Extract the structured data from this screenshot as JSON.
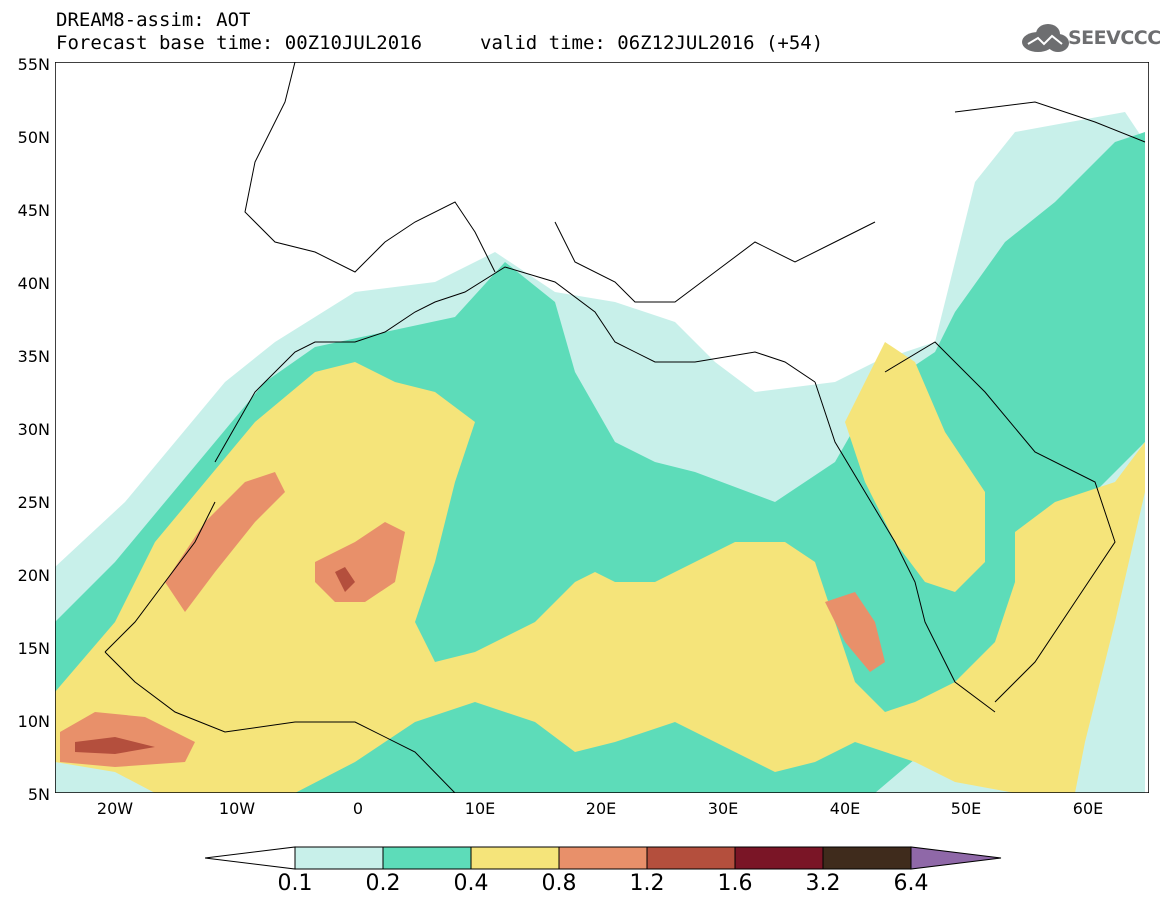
{
  "header": {
    "model_line": "DREAM8-assim: AOT",
    "base_time": "Forecast base time: 00Z10JUL2016",
    "valid_time": "valid time: 06Z12JUL2016 (+54)"
  },
  "logo": {
    "text": "SEEVCCC",
    "icon": "cloud-icon"
  },
  "map": {
    "latitude_labels": [
      "55N",
      "50N",
      "45N",
      "40N",
      "35N",
      "30N",
      "25N",
      "20N",
      "15N",
      "10N",
      "5N"
    ],
    "longitude_labels": [
      "20W",
      "10W",
      "0",
      "10E",
      "20E",
      "30E",
      "40E",
      "50E",
      "60E"
    ],
    "lat_range": [
      5,
      55
    ],
    "lon_range": [
      -25,
      65
    ]
  },
  "colorbar": {
    "labels": [
      "0.1",
      "0.2",
      "0.4",
      "0.8",
      "1.2",
      "1.6",
      "3.2",
      "6.4"
    ],
    "colors": [
      "#ffffff",
      "#c8f0ea",
      "#5ddcb9",
      "#f5e47a",
      "#e8906a",
      "#b44f3d",
      "#7a1526",
      "#3f2b1c",
      "#8f68a8"
    ],
    "ranges": [
      "<0.1",
      "0.1-0.2",
      "0.2-0.4",
      "0.4-0.8",
      "0.8-1.2",
      "1.2-1.6",
      "1.6-3.2",
      "3.2-6.4",
      ">6.4"
    ]
  }
}
